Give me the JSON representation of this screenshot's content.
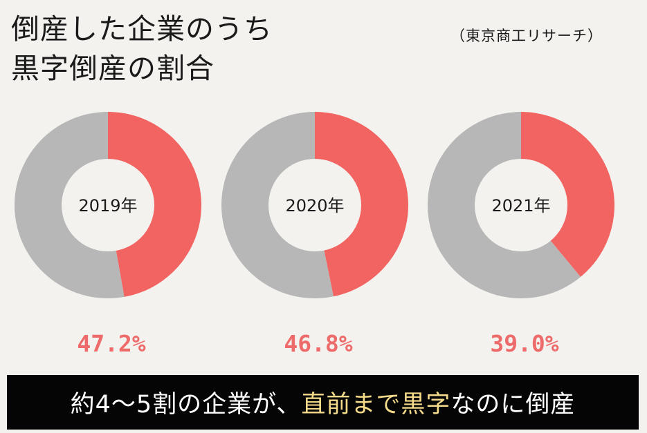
{
  "title": {
    "line1": "倒産した企業のうち",
    "line2": "黒字倒産の割合"
  },
  "source": "（東京商工リサーチ）",
  "colors": {
    "accent": "#f26462",
    "remainder": "#b7b7b7",
    "center": "#f4f2ee",
    "highlight": "#f6dc8a"
  },
  "chart_data": [
    {
      "type": "pie",
      "title": "2019年",
      "values": [
        47.2,
        52.8
      ],
      "label": "47.2%"
    },
    {
      "type": "pie",
      "title": "2020年",
      "values": [
        46.8,
        53.2
      ],
      "label": "46.8%"
    },
    {
      "type": "pie",
      "title": "2021年",
      "values": [
        39.0,
        61.0
      ],
      "label": "39.0%"
    }
  ],
  "banner": {
    "part1": "約4〜5割の企業が、",
    "highlight": "直前まで黒字",
    "part2": "なのに倒産"
  }
}
